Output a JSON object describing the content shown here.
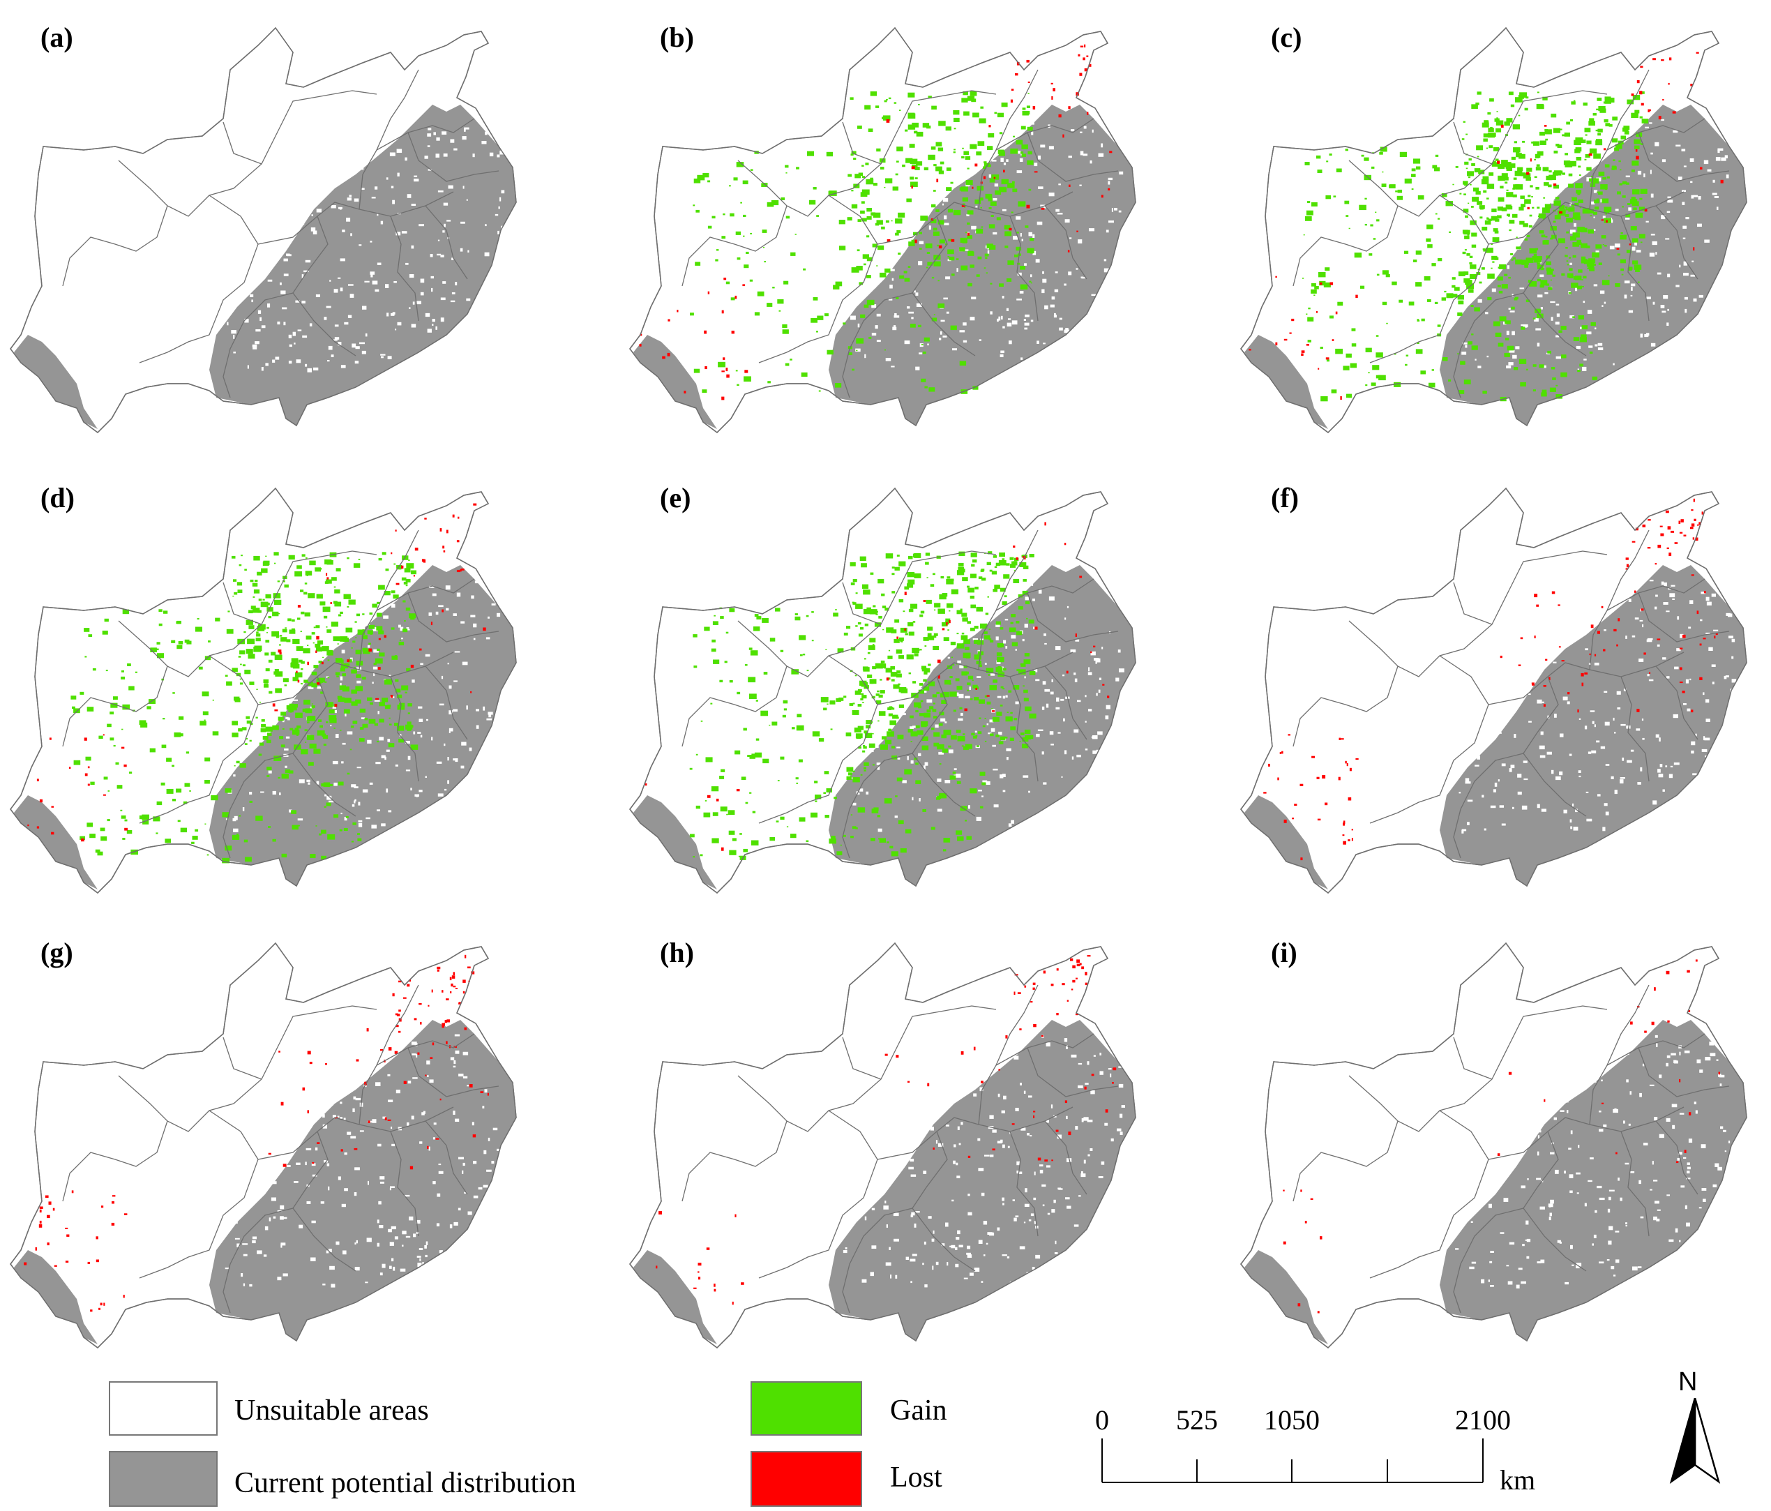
{
  "colors": {
    "unsuitable": "#ffffff",
    "current": "#959595",
    "gain": "#4fe000",
    "lost": "#ff0000",
    "boundary": "#6f6f6f"
  },
  "panels": [
    {
      "label": "(a)",
      "gain": 0,
      "lost": 0
    },
    {
      "label": "(b)",
      "gain": 0.55,
      "lost": 0.35
    },
    {
      "label": "(c)",
      "gain": 1.0,
      "lost": 0.25
    },
    {
      "label": "(d)",
      "gain": 0.8,
      "lost": 0.3
    },
    {
      "label": "(e)",
      "gain": 0.9,
      "lost": 0.15
    },
    {
      "label": "(f)",
      "gain": 0,
      "lost": 0.55
    },
    {
      "label": "(g)",
      "gain": 0,
      "lost": 0.5
    },
    {
      "label": "(h)",
      "gain": 0,
      "lost": 0.3
    },
    {
      "label": "(i)",
      "gain": 0,
      "lost": 0.12
    }
  ],
  "legend": {
    "unsuitable_label": "Unsuitable areas",
    "current_label": "Current potential distribution",
    "gain_label": "Gain",
    "lost_label": "Lost"
  },
  "scale_bar": {
    "ticks": [
      "0",
      "525",
      "1050",
      "2100"
    ],
    "unit": "km"
  },
  "north_arrow": {
    "label": "N",
    "icon": "north-arrow-icon"
  }
}
